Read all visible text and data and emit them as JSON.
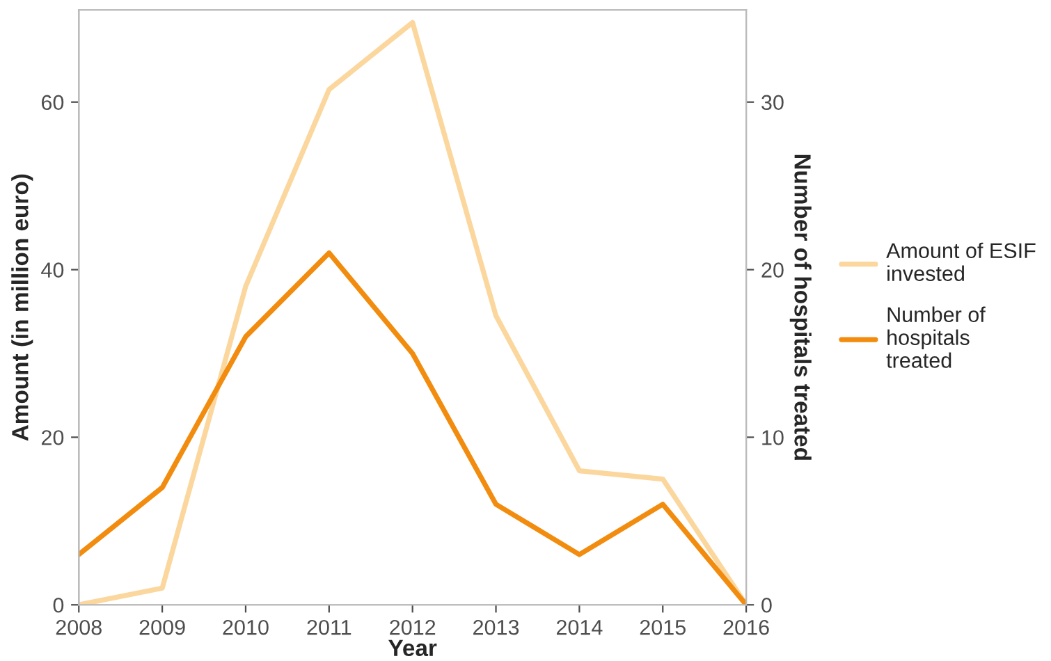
{
  "chart_data": {
    "type": "line",
    "xlabel": "Year",
    "ylabel": "Amount (in million euro)",
    "y2label": "Number of hospitals treated",
    "x": [
      2008,
      2009,
      2010,
      2011,
      2012,
      2013,
      2014,
      2015,
      2016
    ],
    "series": [
      {
        "name": "Amount of ESIF\ninvested",
        "color": "#fbd79e",
        "values": [
          0,
          2,
          38,
          61.5,
          69.5,
          34.5,
          16,
          15,
          0
        ]
      },
      {
        "name": "Number of\nhospitals\ntreated",
        "color": "#f28c0f",
        "axis": "y2",
        "values": [
          3,
          7,
          16,
          21,
          15,
          6,
          3,
          6,
          0
        ]
      }
    ],
    "xlim": [
      2008,
      2016
    ],
    "xticks": [
      2008,
      2009,
      2010,
      2011,
      2012,
      2013,
      2014,
      2015,
      2016
    ],
    "ylim": [
      0,
      71
    ],
    "yticks": [
      0,
      20,
      40,
      60
    ],
    "y2lim": [
      0,
      35.5
    ],
    "y2ticks": [
      0,
      10,
      20,
      30
    ],
    "grid": false,
    "legend": "right"
  }
}
